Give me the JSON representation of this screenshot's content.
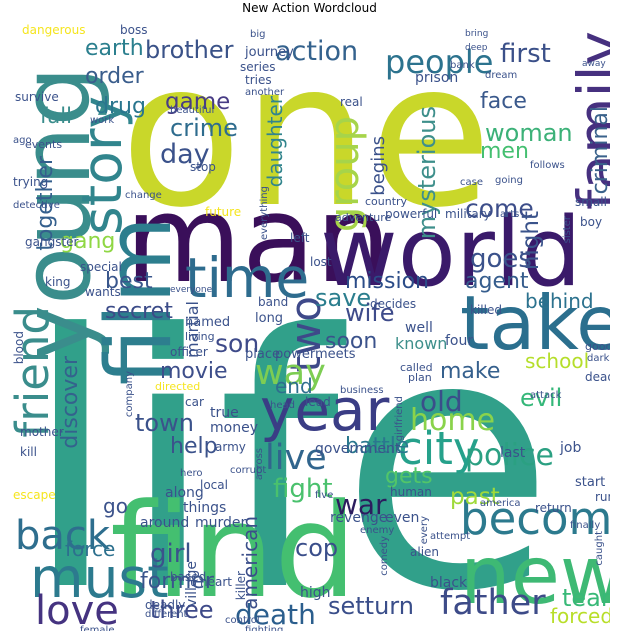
{
  "title": "New Action Wordcloud",
  "words": [
    {
      "text": "life",
      "color": "#31a08a"
    },
    {
      "text": "one",
      "color": "#c9d72a"
    },
    {
      "text": "man",
      "color": "#3a0f5a"
    },
    {
      "text": "world",
      "color": "#3a1a6a"
    },
    {
      "text": "find",
      "color": "#44bf70"
    },
    {
      "text": "new",
      "color": "#3eb974"
    },
    {
      "text": "young",
      "color": "#3a8d8c"
    },
    {
      "text": "film",
      "color": "#2d7e8e"
    },
    {
      "text": "take",
      "color": "#2b6f8e"
    },
    {
      "text": "year",
      "color": "#3a3d85"
    },
    {
      "text": "family",
      "color": "#46307f"
    },
    {
      "text": "time",
      "color": "#2e6c8e"
    },
    {
      "text": "story",
      "color": "#31858d"
    },
    {
      "text": "must",
      "color": "#2c7a8e"
    },
    {
      "text": "become",
      "color": "#2c7a8e"
    },
    {
      "text": "friend",
      "color": "#3a8d8c"
    },
    {
      "text": "city",
      "color": "#26a18b"
    },
    {
      "text": "back",
      "color": "#2e6e8e"
    },
    {
      "text": "father",
      "color": "#3d4b88"
    },
    {
      "text": "love",
      "color": "#453380"
    },
    {
      "text": "two",
      "color": "#3e4989"
    },
    {
      "text": "group",
      "color": "#a6d44a"
    },
    {
      "text": "people",
      "color": "#2c738e"
    },
    {
      "text": "live",
      "color": "#31658d"
    },
    {
      "text": "police",
      "color": "#2ba082"
    },
    {
      "text": "way",
      "color": "#7dcd53"
    },
    {
      "text": "home",
      "color": "#8ad34b"
    },
    {
      "text": "action",
      "color": "#34628d"
    },
    {
      "text": "brother",
      "color": "#3a5288"
    },
    {
      "text": "first",
      "color": "#3b5089"
    },
    {
      "text": "woman",
      "color": "#3cb178"
    },
    {
      "text": "crime",
      "color": "#2e6c8e"
    },
    {
      "text": "day",
      "color": "#3b528b"
    },
    {
      "text": "game",
      "color": "#483c85"
    },
    {
      "text": "face",
      "color": "#3a598c"
    },
    {
      "text": "men",
      "color": "#44bf70"
    },
    {
      "text": "order",
      "color": "#3a5d8c"
    },
    {
      "text": "earth",
      "color": "#2b7f8e"
    },
    {
      "text": "drug",
      "color": "#2a768e"
    },
    {
      "text": "fall",
      "color": "#3a8d8c"
    },
    {
      "text": "criminal",
      "color": "#3a628b"
    },
    {
      "text": "mysterious",
      "color": "#3e8f8b"
    },
    {
      "text": "come",
      "color": "#3d4e8a"
    },
    {
      "text": "daughter",
      "color": "#32858d"
    },
    {
      "text": "begins",
      "color": "#3b528b"
    },
    {
      "text": "together",
      "color": "#345f8d"
    },
    {
      "text": "gang",
      "color": "#8fd744"
    },
    {
      "text": "night",
      "color": "#3a538b"
    },
    {
      "text": "goes",
      "color": "#3b528b"
    },
    {
      "text": "mission",
      "color": "#2b4c88"
    },
    {
      "text": "agent",
      "color": "#365d8d"
    },
    {
      "text": "behind",
      "color": "#2c728e"
    },
    {
      "text": "best",
      "color": "#39568c"
    },
    {
      "text": "save",
      "color": "#2b7e8e"
    },
    {
      "text": "secret",
      "color": "#3b4b88"
    },
    {
      "text": "wife",
      "color": "#3e4b8a"
    },
    {
      "text": "soon",
      "color": "#3b528b"
    },
    {
      "text": "son",
      "color": "#3e4a89"
    },
    {
      "text": "school",
      "color": "#b5de2b"
    },
    {
      "text": "make",
      "color": "#35608d"
    },
    {
      "text": "movie",
      "color": "#3d4e8a"
    },
    {
      "text": "discover",
      "color": "#34628d"
    },
    {
      "text": "old",
      "color": "#3a4e8a"
    },
    {
      "text": "end",
      "color": "#2e6e8e"
    },
    {
      "text": "evil",
      "color": "#35b779"
    },
    {
      "text": "town",
      "color": "#3b528b"
    },
    {
      "text": "help",
      "color": "#3b528b"
    },
    {
      "text": "gets",
      "color": "#52c569"
    },
    {
      "text": "battle",
      "color": "#2a788e"
    },
    {
      "text": "past",
      "color": "#9fda3a"
    },
    {
      "text": "fight",
      "color": "#4ac16d"
    },
    {
      "text": "war",
      "color": "#2c1d5e"
    },
    {
      "text": "go",
      "color": "#3b528b"
    },
    {
      "text": "force",
      "color": "#2d708e"
    },
    {
      "text": "girl",
      "color": "#3b528b"
    },
    {
      "text": "former",
      "color": "#3a548c"
    },
    {
      "text": "american",
      "color": "#3b4e8a"
    },
    {
      "text": "cop",
      "color": "#3a4e8a"
    },
    {
      "text": "death",
      "color": "#2b5e8d"
    },
    {
      "text": "team",
      "color": "#38b977"
    },
    {
      "text": "three",
      "color": "#3e4a89"
    },
    {
      "text": "setturn",
      "color": "#3a4e8a"
    },
    {
      "text": "forced",
      "color": "#b8de29"
    },
    {
      "text": "martial",
      "color": "#3b528b"
    },
    {
      "text": "officer",
      "color": "#3b528b"
    },
    {
      "text": "place",
      "color": "#3b528b"
    },
    {
      "text": "power",
      "color": "#3b528b"
    },
    {
      "text": "meets",
      "color": "#3b528b"
    },
    {
      "text": "known",
      "color": "#3e8f8b"
    },
    {
      "text": "called",
      "color": "#3b528b"
    },
    {
      "text": "plan",
      "color": "#3b528b"
    },
    {
      "text": "dead",
      "color": "#3b528b"
    },
    {
      "text": "named",
      "color": "#3b528b"
    },
    {
      "text": "living",
      "color": "#3b528b"
    },
    {
      "text": "band",
      "color": "#3b528b"
    },
    {
      "text": "long",
      "color": "#3b528b"
    },
    {
      "text": "good",
      "color": "#3b528b"
    },
    {
      "text": "king",
      "color": "#3b528b"
    },
    {
      "text": "wants",
      "color": "#3b528b"
    },
    {
      "text": "lost",
      "color": "#3b528b"
    },
    {
      "text": "decides",
      "color": "#3b528b"
    },
    {
      "text": "killed",
      "color": "#3b528b"
    },
    {
      "text": "special",
      "color": "#3b528b"
    },
    {
      "text": "gangster",
      "color": "#3b528b"
    },
    {
      "text": "left",
      "color": "#3b528b"
    },
    {
      "text": "future",
      "color": "#f5e51f"
    },
    {
      "text": "powerful",
      "color": "#3b528b"
    },
    {
      "text": "military",
      "color": "#3b528b"
    },
    {
      "text": "arts",
      "color": "#3b528b"
    },
    {
      "text": "country",
      "color": "#3b528b"
    },
    {
      "text": "adventure",
      "color": "#3b528b"
    },
    {
      "text": "small",
      "color": "#3b528b"
    },
    {
      "text": "boy",
      "color": "#3b528b"
    },
    {
      "text": "sister",
      "color": "#3b528b"
    },
    {
      "text": "case",
      "color": "#3b528b"
    },
    {
      "text": "follows",
      "color": "#3b528b"
    },
    {
      "text": "going",
      "color": "#3b528b"
    },
    {
      "text": "dream",
      "color": "#3b528b"
    },
    {
      "text": "bank",
      "color": "#3b528b"
    },
    {
      "text": "away",
      "color": "#3b528b"
    },
    {
      "text": "bring",
      "color": "#3b528b"
    },
    {
      "text": "deep",
      "color": "#3b528b"
    },
    {
      "text": "prison",
      "color": "#3b528b"
    },
    {
      "text": "real",
      "color": "#3b528b"
    },
    {
      "text": "journey",
      "color": "#3b528b"
    },
    {
      "text": "series",
      "color": "#3b528b"
    },
    {
      "text": "tries",
      "color": "#3b528b"
    },
    {
      "text": "another",
      "color": "#3b528b"
    },
    {
      "text": "big",
      "color": "#3b528b"
    },
    {
      "text": "boss",
      "color": "#3b528b"
    },
    {
      "text": "dangerous",
      "color": "#f5e51f"
    },
    {
      "text": "survive",
      "color": "#3b528b"
    },
    {
      "text": "work",
      "color": "#3b528b"
    },
    {
      "text": "beautiful",
      "color": "#3b528b"
    },
    {
      "text": "events",
      "color": "#3b528b"
    },
    {
      "text": "ago",
      "color": "#3b528b"
    },
    {
      "text": "stop",
      "color": "#3b528b"
    },
    {
      "text": "trying",
      "color": "#3b528b"
    },
    {
      "text": "detective",
      "color": "#3b528b"
    },
    {
      "text": "change",
      "color": "#3b528b"
    },
    {
      "text": "everything",
      "color": "#3b528b"
    },
    {
      "text": "everyone",
      "color": "#3b528b"
    },
    {
      "text": "blood",
      "color": "#3b528b"
    },
    {
      "text": "mother",
      "color": "#3b528b"
    },
    {
      "text": "kill",
      "color": "#3b528b"
    },
    {
      "text": "directed",
      "color": "#f5e51f"
    },
    {
      "text": "true",
      "color": "#3b528b"
    },
    {
      "text": "money",
      "color": "#3b528b"
    },
    {
      "text": "army",
      "color": "#3b528b"
    },
    {
      "text": "company",
      "color": "#3b528b"
    },
    {
      "text": "car",
      "color": "#3b528b"
    },
    {
      "text": "corrupt",
      "color": "#3b528b"
    },
    {
      "text": "hero",
      "color": "#3b528b"
    },
    {
      "text": "local",
      "color": "#3b528b"
    },
    {
      "text": "across",
      "color": "#3b528b"
    },
    {
      "text": "head",
      "color": "#3b528b"
    },
    {
      "text": "lead",
      "color": "#3b528b"
    },
    {
      "text": "business",
      "color": "#3b528b"
    },
    {
      "text": "girlfriend",
      "color": "#3b528b"
    },
    {
      "text": "government",
      "color": "#3b528b"
    },
    {
      "text": "attack",
      "color": "#3b528b"
    },
    {
      "text": "last",
      "color": "#3b528b"
    },
    {
      "text": "job",
      "color": "#3b528b"
    },
    {
      "text": "along",
      "color": "#3b528b"
    },
    {
      "text": "human",
      "color": "#3b528b"
    },
    {
      "text": "america",
      "color": "#3b528b"
    },
    {
      "text": "return",
      "color": "#3b528b"
    },
    {
      "text": "start",
      "color": "#3b528b"
    },
    {
      "text": "run",
      "color": "#3b528b"
    },
    {
      "text": "finally",
      "color": "#3b528b"
    },
    {
      "text": "caught",
      "color": "#3b528b"
    },
    {
      "text": "escape",
      "color": "#f5e51f"
    },
    {
      "text": "things",
      "color": "#3b528b"
    },
    {
      "text": "around",
      "color": "#3b528b"
    },
    {
      "text": "murder",
      "color": "#3b528b"
    },
    {
      "text": "five",
      "color": "#3b528b"
    },
    {
      "text": "revenge",
      "color": "#3b528b"
    },
    {
      "text": "even",
      "color": "#3b528b"
    },
    {
      "text": "enemy",
      "color": "#3b528b"
    },
    {
      "text": "every",
      "color": "#3b528b"
    },
    {
      "text": "attempt",
      "color": "#3b528b"
    },
    {
      "text": "alien",
      "color": "#3b528b"
    },
    {
      "text": "based",
      "color": "#3b528b"
    },
    {
      "text": "village",
      "color": "#3b528b"
    },
    {
      "text": "deadly",
      "color": "#3b528b"
    },
    {
      "text": "different",
      "color": "#3b528b"
    },
    {
      "text": "heart",
      "color": "#3b528b"
    },
    {
      "text": "killer",
      "color": "#3b528b"
    },
    {
      "text": "high",
      "color": "#3b528b"
    },
    {
      "text": "comedy",
      "color": "#3b528b"
    },
    {
      "text": "black",
      "color": "#3b528b"
    },
    {
      "text": "control",
      "color": "#3b528b"
    },
    {
      "text": "fighting",
      "color": "#3b528b"
    },
    {
      "text": "female",
      "color": "#3b528b"
    },
    {
      "text": "four",
      "color": "#3b528b"
    },
    {
      "text": "well",
      "color": "#3b528b"
    },
    {
      "text": "dark",
      "color": "#3b528b"
    }
  ]
}
